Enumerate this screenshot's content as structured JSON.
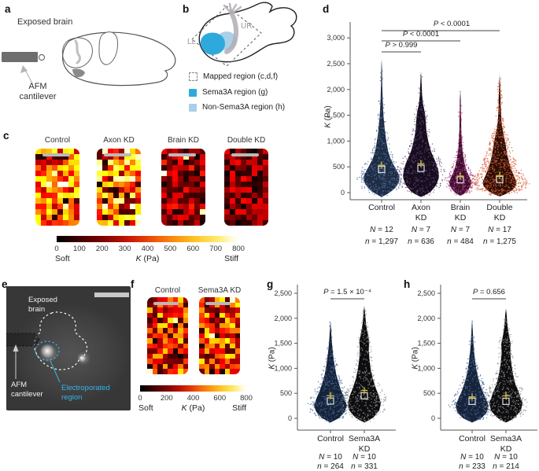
{
  "figure": {
    "background": "#ffffff"
  },
  "panels": {
    "a": {
      "label": "a",
      "brain_label": "Exposed brain",
      "afm_line1": "AFM",
      "afm_line2": "cantilever"
    },
    "b": {
      "label": "b",
      "ll": "LL",
      "ur": "UR",
      "legend": [
        {
          "label": "Mapped region (c,d,f)",
          "swatch": "dashed",
          "color": "#ffffff"
        },
        {
          "label": "Sema3A region (g)",
          "swatch": "solid",
          "color": "#2ea9dc"
        },
        {
          "label": "Non-Sema3A region (h)",
          "swatch": "solid",
          "color": "#a9cfe9"
        }
      ]
    },
    "c": {
      "label": "c"
    },
    "d": {
      "label": "d"
    },
    "e": {
      "label": "e",
      "exposed_line1": "Exposed",
      "exposed_line2": "brain",
      "afm_line1": "AFM",
      "afm_line2": "cantilever",
      "electro_line1": "Electroporated",
      "electro_line2": "region",
      "electro_color": "#35b5e8"
    },
    "f": {
      "label": "f"
    },
    "g": {
      "label": "g"
    },
    "h": {
      "label": "h"
    }
  },
  "chart_data": [
    {
      "type": "heatmap",
      "panel": "c",
      "rows": 14,
      "cols": 8,
      "value_range": [
        0,
        800
      ],
      "maps": [
        {
          "title": "Control",
          "seed": 101,
          "base": 430,
          "spread": 480,
          "dark_p": 0.07,
          "white_p": 0.04
        },
        {
          "title": "Axon KD",
          "seed": 202,
          "base": 430,
          "spread": 620,
          "dark_p": 0.14,
          "white_p": 0.12
        },
        {
          "title": "Brain KD",
          "seed": 303,
          "base": 185,
          "spread": 320,
          "dark_p": 0.26,
          "white_p": 0.01
        },
        {
          "title": "Double KD",
          "seed": 404,
          "base": 165,
          "spread": 300,
          "dark_p": 0.3,
          "white_p": 0.01
        }
      ],
      "colorbar": {
        "ticks": [
          "0",
          "100",
          "200",
          "300",
          "400",
          "500",
          "600",
          "700",
          "800"
        ],
        "soft": "Soft",
        "klabel": "K (Pa)",
        "stiff": "Stiff"
      }
    },
    {
      "type": "heatmap",
      "panel": "f",
      "rows": 15,
      "cols": 8,
      "value_range": [
        0,
        800
      ],
      "maps": [
        {
          "title": "Control",
          "seed": 505,
          "base": 340,
          "spread": 470,
          "dark_p": 0.16,
          "white_p": 0.02
        },
        {
          "title": "Sema3A KD",
          "seed": 606,
          "base": 355,
          "spread": 500,
          "dark_p": 0.15,
          "white_p": 0.05
        }
      ],
      "colorbar": {
        "ticks": [
          "0",
          "200",
          "400",
          "600",
          "800"
        ],
        "soft": "Soft",
        "klabel": "K (Pa)",
        "stiff": "Stiff"
      }
    },
    {
      "type": "violin",
      "panel": "d",
      "ylabel_k": "K",
      "ylabel_unit": " (Pa)",
      "ylim": [
        -150,
        3300
      ],
      "yticks": [
        [
          0,
          "0"
        ],
        [
          500,
          "500"
        ],
        [
          1000,
          "1,000"
        ],
        [
          1500,
          "1,500"
        ],
        [
          2000,
          "2,000"
        ],
        [
          2500,
          "2,500"
        ],
        [
          3000,
          "3,000"
        ]
      ],
      "marker_colors": {
        "mean": "#c8b53f",
        "median": "#e0e0e0"
      },
      "categories": [
        {
          "line1": "Control",
          "line2": "",
          "N": "N = 12",
          "n": "n = 1,297",
          "mean": 530,
          "median": 450,
          "body": "#1e2d45",
          "dots": "#54719c",
          "dot_count": 420,
          "spread": 1.35,
          "profile": [
            [
              -80,
              0.03
            ],
            [
              0,
              0.45
            ],
            [
              100,
              0.78
            ],
            [
              200,
              0.95
            ],
            [
              300,
              1.0
            ],
            [
              400,
              0.88
            ],
            [
              500,
              0.72
            ],
            [
              650,
              0.5
            ],
            [
              800,
              0.36
            ],
            [
              1000,
              0.26
            ],
            [
              1200,
              0.18
            ],
            [
              1500,
              0.1
            ],
            [
              1800,
              0.06
            ],
            [
              2100,
              0.035
            ],
            [
              2400,
              0.02
            ],
            [
              2600,
              0
            ]
          ]
        },
        {
          "line1": "Axon",
          "line2": "KD",
          "N": "N = 7",
          "n": "n = 636",
          "mean": 560,
          "median": 470,
          "body": "#170d20",
          "dots": "#64486f",
          "dot_count": 400,
          "spread": 1.35,
          "profile": [
            [
              -80,
              0.03
            ],
            [
              0,
              0.5
            ],
            [
              150,
              0.85
            ],
            [
              300,
              1.0
            ],
            [
              450,
              0.95
            ],
            [
              600,
              0.8
            ],
            [
              800,
              0.55
            ],
            [
              1000,
              0.4
            ],
            [
              1200,
              0.3
            ],
            [
              1400,
              0.26
            ],
            [
              1550,
              0.22
            ],
            [
              1700,
              0.12
            ],
            [
              1900,
              0.06
            ],
            [
              2100,
              0.04
            ],
            [
              2350,
              0
            ]
          ]
        },
        {
          "line1": "Brain",
          "line2": "KD",
          "N": "N = 7",
          "n": "n = 484",
          "mean": 320,
          "median": 250,
          "body": "#3f0f30",
          "dots": "#b3478b",
          "dot_count": 330,
          "halfw_scale": 0.62,
          "spread": 1.55,
          "profile": [
            [
              -60,
              0.03
            ],
            [
              0,
              0.5
            ],
            [
              100,
              0.85
            ],
            [
              200,
              1.0
            ],
            [
              300,
              0.82
            ],
            [
              400,
              0.6
            ],
            [
              500,
              0.45
            ],
            [
              650,
              0.3
            ],
            [
              800,
              0.2
            ],
            [
              1000,
              0.13
            ],
            [
              1200,
              0.09
            ],
            [
              1500,
              0.06
            ],
            [
              1800,
              0.04
            ],
            [
              2000,
              0
            ]
          ]
        },
        {
          "line1": "Double",
          "line2": "KD",
          "N": "N = 17",
          "n": "n = 1,275",
          "mean": 330,
          "median": 255,
          "body": "#2a0f08",
          "dots": "#d85c31",
          "dot_count": 780,
          "halfw_scale": 0.95,
          "spread": 1.7,
          "profile": [
            [
              -70,
              0.03
            ],
            [
              0,
              0.55
            ],
            [
              100,
              0.9
            ],
            [
              200,
              1.0
            ],
            [
              350,
              0.8
            ],
            [
              500,
              0.62
            ],
            [
              700,
              0.46
            ],
            [
              900,
              0.36
            ],
            [
              1050,
              0.28
            ],
            [
              1200,
              0.18
            ],
            [
              1400,
              0.1
            ],
            [
              1700,
              0.06
            ],
            [
              2000,
              0.04
            ],
            [
              2300,
              0
            ]
          ]
        }
      ],
      "annotations": [
        {
          "label": "P > 0.999",
          "from": 0,
          "to": 1,
          "y": 66
        },
        {
          "label": "P < 0.0001",
          "from": 0,
          "to": 2,
          "y": 52
        },
        {
          "label": "P < 0.0001",
          "from": 0,
          "to": 3,
          "y": 39,
          "tx": 166
        }
      ]
    },
    {
      "type": "violin",
      "panel": "g",
      "ylabel_k": "K",
      "ylabel_unit": " (Pa)",
      "ylim": [
        -150,
        2700
      ],
      "yticks": [
        [
          0,
          "0"
        ],
        [
          500,
          "500"
        ],
        [
          1000,
          "1,000"
        ],
        [
          1500,
          "1,500"
        ],
        [
          2000,
          "2,000"
        ],
        [
          2500,
          "2,500"
        ]
      ],
      "marker_colors": {
        "mean": "#c8b53f",
        "median": "#e0e0e0"
      },
      "categories": [
        {
          "line1": "Control",
          "line2": "",
          "N": "N = 10",
          "n": "n = 264",
          "mean": 450,
          "median": 345,
          "body": "#16233a",
          "dots": "#4a6a99",
          "dot_count": 380,
          "spread": 1.4,
          "profile": [
            [
              -80,
              0.03
            ],
            [
              0,
              0.5
            ],
            [
              120,
              0.85
            ],
            [
              250,
              1.0
            ],
            [
              400,
              0.85
            ],
            [
              550,
              0.65
            ],
            [
              700,
              0.5
            ],
            [
              900,
              0.33
            ],
            [
              1100,
              0.23
            ],
            [
              1300,
              0.15
            ],
            [
              1500,
              0.09
            ],
            [
              1700,
              0.05
            ],
            [
              1950,
              0
            ]
          ]
        },
        {
          "line1": "Sema3A",
          "line2": "KD",
          "N": "N = 10",
          "n": "n = 331",
          "mean": 555,
          "median": 450,
          "body": "#0e0e10",
          "dots": "#8f8f8f",
          "dot_count": 420,
          "spread": 1.4,
          "profile": [
            [
              -80,
              0.03
            ],
            [
              0,
              0.5
            ],
            [
              150,
              0.9
            ],
            [
              300,
              1.0
            ],
            [
              450,
              0.88
            ],
            [
              600,
              0.7
            ],
            [
              800,
              0.5
            ],
            [
              1000,
              0.38
            ],
            [
              1200,
              0.3
            ],
            [
              1400,
              0.27
            ],
            [
              1550,
              0.3
            ],
            [
              1700,
              0.2
            ],
            [
              1900,
              0.1
            ],
            [
              2100,
              0.05
            ],
            [
              2250,
              0
            ]
          ]
        }
      ],
      "annotations": [
        {
          "label": "P = 1.5 × 10⁻⁴",
          "from": 0,
          "to": 1,
          "y": 28
        }
      ]
    },
    {
      "type": "violin",
      "panel": "h",
      "ylabel_k": "K",
      "ylabel_unit": " (Pa)",
      "ylim": [
        -150,
        2700
      ],
      "yticks": [
        [
          0,
          "0"
        ],
        [
          500,
          "500"
        ],
        [
          1000,
          "1,000"
        ],
        [
          1500,
          "1,500"
        ],
        [
          2000,
          "2,000"
        ],
        [
          2500,
          "2,500"
        ]
      ],
      "marker_colors": {
        "mean": "#c8b53f",
        "median": "#e0e0e0"
      },
      "categories": [
        {
          "line1": "Control",
          "line2": "",
          "N": "N = 10",
          "n": "n = 233",
          "mean": 430,
          "median": 340,
          "body": "#16233a",
          "dots": "#4a6a99",
          "dot_count": 380,
          "spread": 1.4,
          "profile": [
            [
              -80,
              0.03
            ],
            [
              0,
              0.55
            ],
            [
              120,
              0.9
            ],
            [
              250,
              1.0
            ],
            [
              400,
              0.82
            ],
            [
              550,
              0.62
            ],
            [
              700,
              0.46
            ],
            [
              900,
              0.3
            ],
            [
              1100,
              0.2
            ],
            [
              1300,
              0.13
            ],
            [
              1500,
              0.08
            ],
            [
              1700,
              0.05
            ],
            [
              1980,
              0
            ]
          ]
        },
        {
          "line1": "Sema3A",
          "line2": "KD",
          "N": "N = 10",
          "n": "n = 214",
          "mean": 450,
          "median": 340,
          "body": "#0e0e10",
          "dots": "#8f8f8f",
          "dot_count": 420,
          "spread": 1.4,
          "profile": [
            [
              -80,
              0.03
            ],
            [
              0,
              0.5
            ],
            [
              150,
              0.9
            ],
            [
              300,
              1.0
            ],
            [
              500,
              0.8
            ],
            [
              700,
              0.55
            ],
            [
              900,
              0.42
            ],
            [
              1100,
              0.32
            ],
            [
              1300,
              0.26
            ],
            [
              1500,
              0.28
            ],
            [
              1650,
              0.18
            ],
            [
              1850,
              0.09
            ],
            [
              2050,
              0.05
            ],
            [
              2200,
              0
            ]
          ]
        }
      ],
      "annotations": [
        {
          "label": "P = 0.656",
          "from": 0,
          "to": 1,
          "y": 28
        }
      ]
    }
  ]
}
